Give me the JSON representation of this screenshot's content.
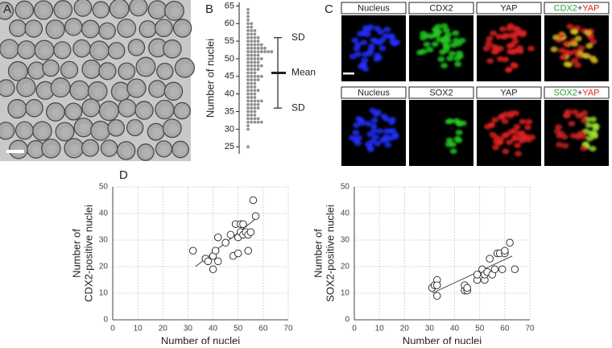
{
  "panel_labels": [
    "A",
    "B",
    "C",
    "D"
  ],
  "panel_c": {
    "rows": [
      {
        "labels": [
          "Nucleus",
          "CDX2",
          "YAP"
        ],
        "merge": [
          {
            "text": "CDX2",
            "color": "#2e9e2e"
          },
          {
            "text": "+",
            "color": "#222222"
          },
          {
            "text": "YAP",
            "color": "#e02020"
          }
        ]
      },
      {
        "labels": [
          "Nucleus",
          "SOX2",
          "YAP"
        ],
        "merge": [
          {
            "text": "SOX2",
            "color": "#2e9e2e"
          },
          {
            "text": "+",
            "color": "#222222"
          },
          {
            "text": "YAP",
            "color": "#e02020"
          }
        ]
      }
    ]
  },
  "chart_data": [
    {
      "type": "strip",
      "ylabel": "Number of nuclei",
      "color": "#909090",
      "ylim": [
        23,
        66
      ],
      "yticks": [
        25,
        30,
        35,
        40,
        45,
        50,
        55,
        60,
        65
      ],
      "values": [
        64,
        63,
        62,
        61,
        60,
        60,
        59,
        59,
        58,
        58,
        58,
        57,
        57,
        57,
        56,
        56,
        56,
        56,
        55,
        55,
        55,
        55,
        54,
        54,
        54,
        54,
        54,
        53,
        53,
        53,
        53,
        53,
        53,
        52,
        52,
        52,
        52,
        52,
        52,
        52,
        52,
        51,
        51,
        51,
        51,
        50,
        50,
        50,
        50,
        50,
        49,
        49,
        49,
        49,
        48,
        48,
        48,
        48,
        48,
        47,
        47,
        47,
        47,
        46,
        46,
        46,
        45,
        45,
        45,
        45,
        45,
        44,
        44,
        44,
        44,
        43,
        43,
        43,
        42,
        42,
        42,
        41,
        41,
        41,
        41,
        40,
        40,
        40,
        39,
        39,
        39,
        38,
        38,
        38,
        38,
        38,
        37,
        37,
        37,
        37,
        36,
        36,
        36,
        36,
        35,
        35,
        35,
        34,
        34,
        34,
        33,
        33,
        33,
        33,
        32,
        32,
        32,
        32,
        32,
        31,
        30,
        25
      ],
      "annotations": [
        {
          "label": "SD",
          "value": 56
        },
        {
          "label": "Mean",
          "value": 46
        },
        {
          "label": "SD",
          "value": 36
        }
      ]
    },
    {
      "type": "scatter",
      "xlabel": "Number of nuclei",
      "ylabel": [
        "Number of",
        "CDX2-positive nuclei"
      ],
      "xlim": [
        0,
        70
      ],
      "xticks": [
        0,
        10,
        20,
        30,
        40,
        50,
        60,
        70
      ],
      "ylim": [
        0,
        50
      ],
      "yticks": [
        0,
        10,
        20,
        30,
        40,
        50
      ],
      "grid": true,
      "x": [
        32,
        37,
        38,
        40,
        40,
        41,
        42,
        42,
        45,
        47,
        48,
        49,
        50,
        50,
        51,
        51,
        52,
        52,
        53,
        54,
        54,
        55,
        56,
        57
      ],
      "y": [
        26,
        23,
        22,
        19,
        24,
        26,
        31,
        22,
        29,
        32,
        24,
        36,
        25,
        31,
        36,
        33,
        36,
        32,
        33,
        26,
        32,
        33,
        45,
        39
      ],
      "trendline": {
        "x": [
          33,
          57
        ],
        "y": [
          20,
          38
        ]
      }
    },
    {
      "type": "scatter",
      "xlabel": "Number of nuclei",
      "ylabel": [
        "Number of",
        "SOX2-positive nuclei"
      ],
      "xlim": [
        0,
        70
      ],
      "xticks": [
        0,
        10,
        20,
        30,
        40,
        50,
        60,
        70
      ],
      "ylim": [
        0,
        50
      ],
      "yticks": [
        0,
        10,
        20,
        30,
        40,
        50
      ],
      "grid": true,
      "x": [
        31,
        32,
        33,
        33,
        33,
        44,
        44,
        45,
        45,
        49,
        49,
        51,
        52,
        52,
        53,
        54,
        55,
        56,
        57,
        58,
        59,
        60,
        60,
        62,
        64
      ],
      "y": [
        12,
        13,
        15,
        9,
        13,
        11,
        13,
        11,
        12,
        15,
        17,
        19,
        15,
        17,
        18,
        23,
        17,
        19,
        25,
        25,
        19,
        25,
        26,
        29,
        19
      ],
      "trendline": {
        "x": [
          31,
          63
        ],
        "y": [
          10,
          24
        ]
      }
    }
  ]
}
